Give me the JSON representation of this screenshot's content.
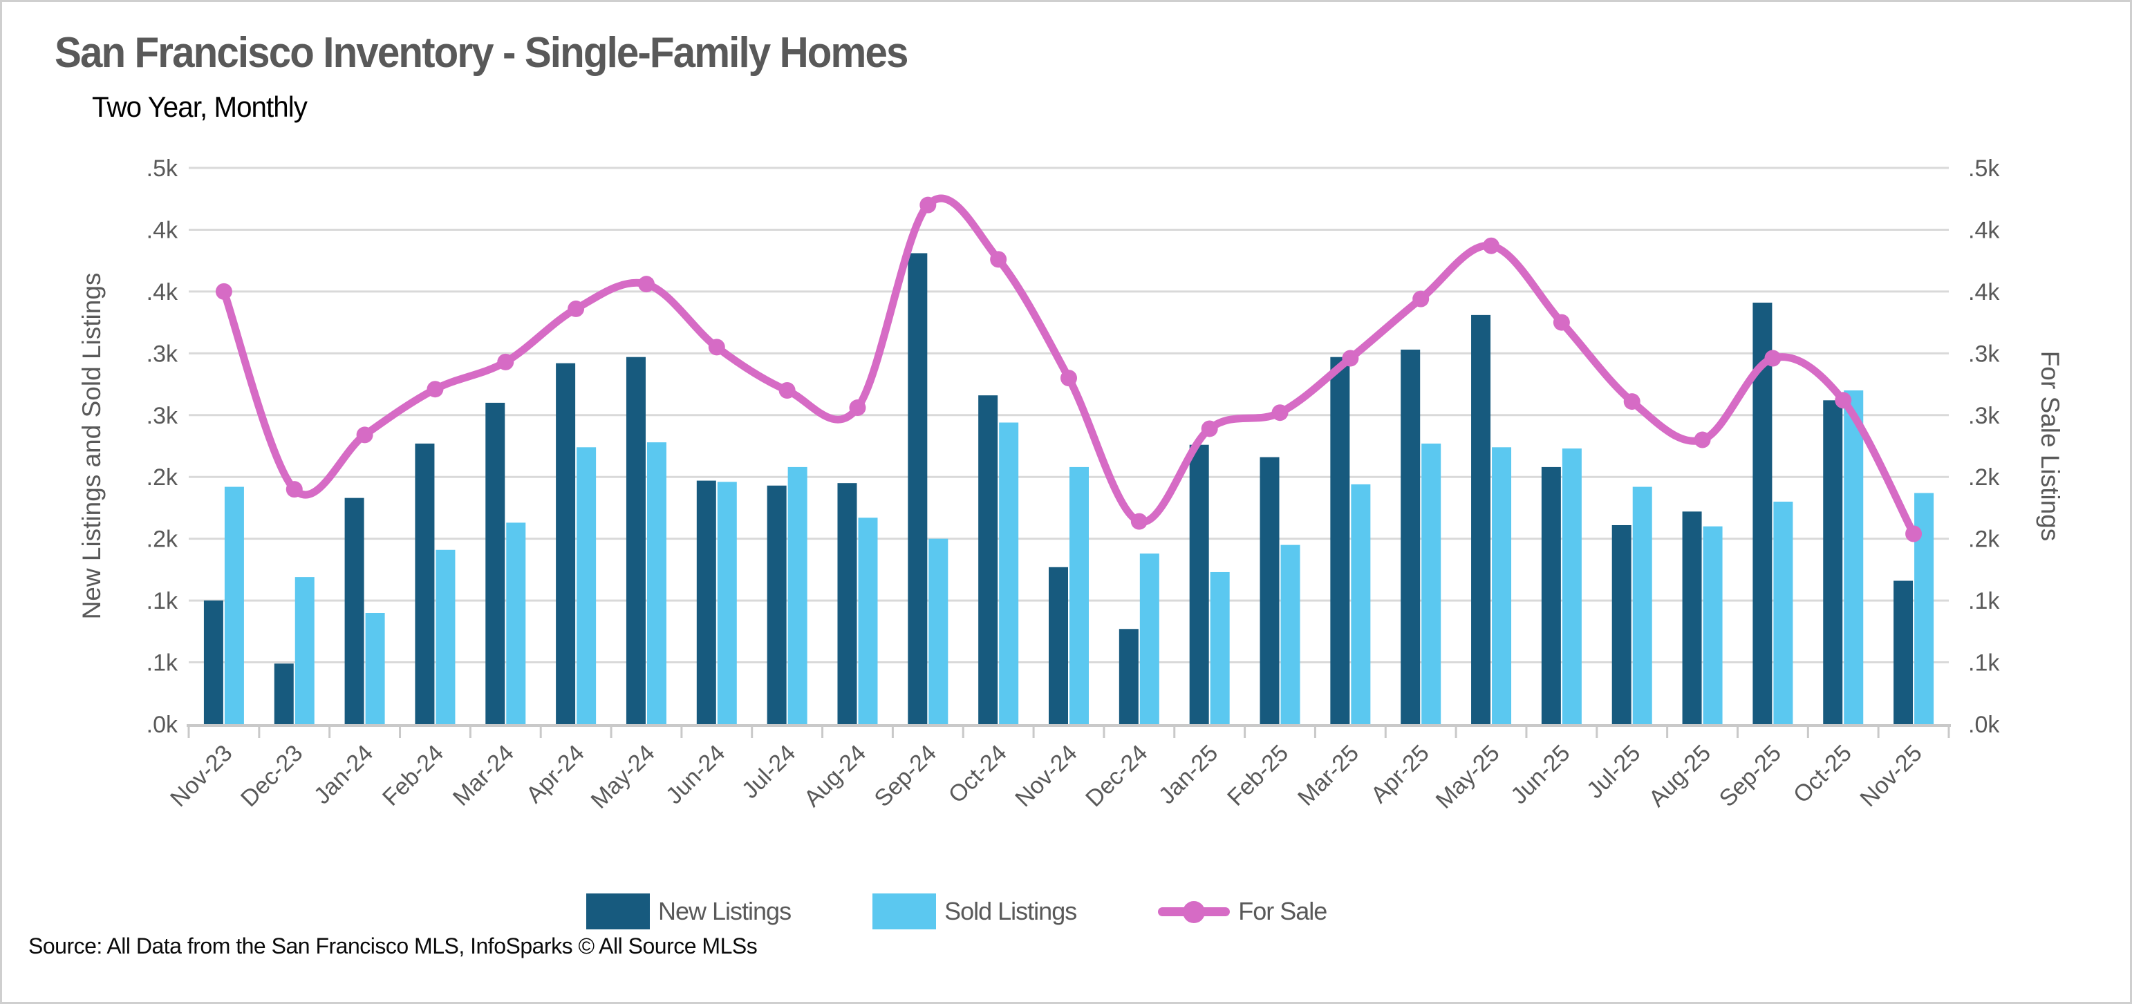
{
  "header": {
    "title": "San Francisco Inventory - Single-Family Homes",
    "subtitle": "Two Year, Monthly"
  },
  "footer": {
    "source": "Source: All Data from the San Francisco MLS, InfoSparks © All Source MLSs"
  },
  "colors": {
    "new_listings": "#175a7e",
    "sold_listings": "#5bc8f0",
    "for_sale": "#d66bc5",
    "gridline": "#d9d9d9",
    "axis_line": "#c9c9c9",
    "text_gray": "#595959",
    "page_border": "#cfcfcf"
  },
  "chart_data": {
    "type": "combo",
    "categories": [
      "Nov-23",
      "Dec-23",
      "Jan-24",
      "Feb-24",
      "Mar-24",
      "Apr-24",
      "May-24",
      "Jun-24",
      "Jul-24",
      "Aug-24",
      "Sep-24",
      "Oct-24",
      "Nov-24",
      "Dec-24",
      "Jan-25",
      "Feb-25",
      "Mar-25",
      "Apr-25",
      "May-25",
      "Jun-25",
      "Jul-25",
      "Aug-25",
      "Sep-25",
      "Oct-25",
      "Nov-25"
    ],
    "series": [
      {
        "name": "New Listings",
        "type": "bar",
        "color": "#175a7e",
        "values": [
          100,
          49,
          183,
          227,
          260,
          292,
          297,
          197,
          193,
          195,
          381,
          266,
          127,
          77,
          226,
          216,
          297,
          303,
          331,
          208,
          161,
          172,
          341,
          262,
          116
        ]
      },
      {
        "name": "Sold Listings",
        "type": "bar",
        "color": "#5bc8f0",
        "values": [
          192,
          119,
          90,
          141,
          163,
          224,
          228,
          196,
          208,
          167,
          150,
          244,
          208,
          138,
          123,
          145,
          194,
          227,
          224,
          223,
          192,
          160,
          180,
          270,
          187
        ]
      },
      {
        "name": "For Sale",
        "type": "line",
        "color": "#d66bc5",
        "values": [
          350,
          190,
          234,
          271,
          293,
          336,
          356,
          305,
          270,
          256,
          420,
          376,
          280,
          164,
          239,
          252,
          296,
          344,
          387,
          325,
          261,
          230,
          296,
          262,
          154
        ]
      }
    ],
    "title": "San Francisco Inventory - Single-Family Homes",
    "subtitle": "Two Year, Monthly",
    "xlabel": "",
    "ylabel_left": "New Listings and Sold Listings",
    "ylabel_right": "For Sale Listings",
    "ylim": [
      0,
      450
    ],
    "ytick_step": 50,
    "ytick_labels_bottom_to_top": [
      ".0k",
      ".1k",
      ".1k",
      ".2k",
      ".2k",
      ".3k",
      ".3k",
      ".4k",
      ".4k",
      ".5k"
    ],
    "grid": true,
    "legend_position": "bottom"
  },
  "legend_note": "legend labels come from chart_data.series names"
}
